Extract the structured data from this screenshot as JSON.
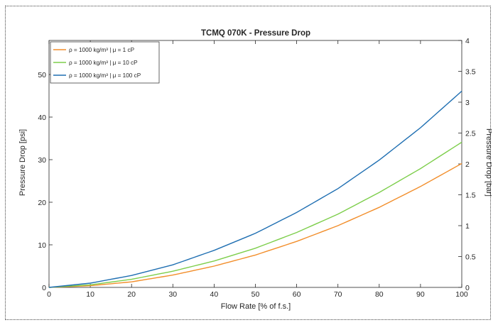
{
  "chart_data": {
    "type": "line",
    "title": "TCMQ 070K - Pressure Drop",
    "xlabel": "Flow Rate [% of f.s.]",
    "ylabel": "Pressure Drop [psi]",
    "y2label": "Pressure Drop [bar]",
    "xlim": [
      0,
      100
    ],
    "ylim": [
      0,
      58
    ],
    "y2lim": [
      0,
      4
    ],
    "xticks": [
      "0",
      "10",
      "20",
      "30",
      "40",
      "50",
      "60",
      "70",
      "80",
      "90",
      "100"
    ],
    "yticks": [
      "0",
      "10",
      "20",
      "30",
      "40",
      "50"
    ],
    "y2ticks": [
      "0",
      "0.5",
      "1",
      "1.5",
      "2",
      "2.5",
      "3",
      "3.5",
      "4"
    ],
    "grid": false,
    "legend_position": "top-left",
    "x": [
      0,
      10,
      20,
      30,
      40,
      50,
      60,
      70,
      80,
      90,
      100
    ],
    "series": [
      {
        "name": "ρ = 1000 kg/m³ | μ = 1 cP",
        "color": "#F28E2B",
        "values": [
          0,
          0.4,
          1.3,
          2.9,
          5.0,
          7.6,
          10.8,
          14.5,
          18.8,
          23.7,
          29.1
        ]
      },
      {
        "name": "ρ = 1000 kg/m³ | μ = 10 cP",
        "color": "#7DCE4B",
        "values": [
          0,
          0.6,
          1.9,
          3.8,
          6.2,
          9.2,
          12.9,
          17.2,
          22.3,
          27.9,
          34.1
        ]
      },
      {
        "name": "ρ = 1000 kg/m³ | μ = 100 cP",
        "color": "#1F6FB2",
        "values": [
          0,
          1.0,
          2.8,
          5.3,
          8.7,
          12.7,
          17.6,
          23.2,
          29.9,
          37.5,
          46.1
        ]
      }
    ]
  }
}
